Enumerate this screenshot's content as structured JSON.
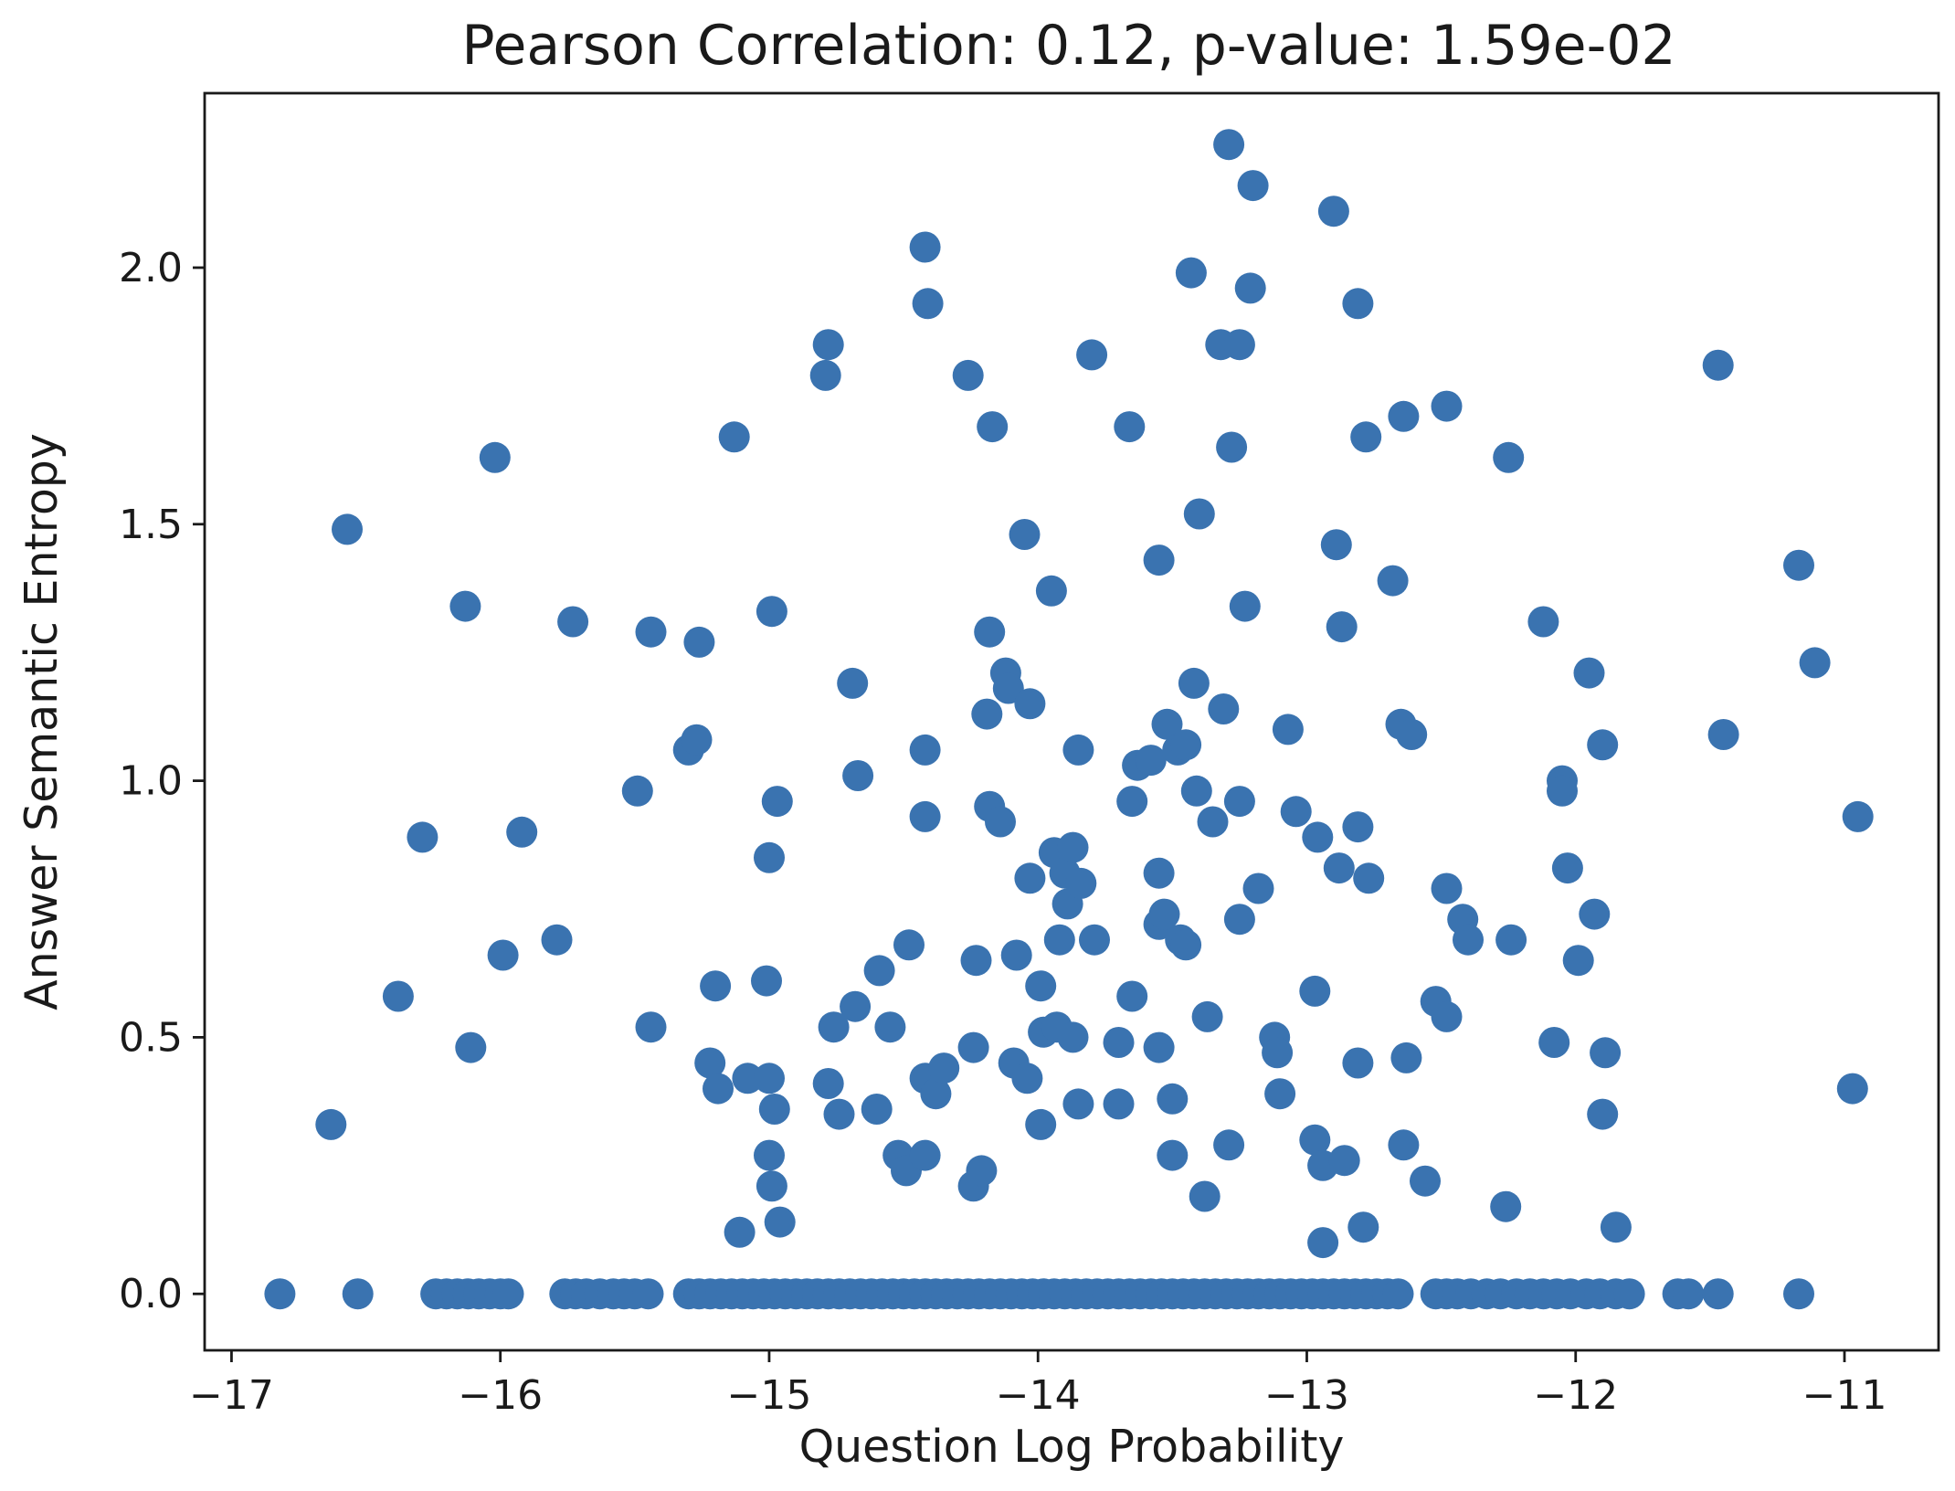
{
  "chart_data": {
    "type": "scatter",
    "title": "Pearson Correlation: 0.12, p-value: 1.59e-02",
    "xlabel": "Question Log Probability",
    "ylabel": "Answer Semantic Entropy",
    "xlim": [
      -17.1,
      -10.65
    ],
    "ylim": [
      -0.11,
      2.34
    ],
    "xticks": [
      -17,
      -16,
      -15,
      -14,
      -13,
      -12,
      -11
    ],
    "xtick_labels": [
      "−17",
      "−16",
      "−15",
      "−14",
      "−13",
      "−12",
      "−11"
    ],
    "yticks": [
      0.0,
      0.5,
      1.0,
      1.5,
      2.0
    ],
    "ytick_labels": [
      "0.0",
      "0.5",
      "1.0",
      "1.5",
      "2.0"
    ],
    "grid": false,
    "marker_color": "#3a73b0",
    "points": [
      [
        -16.82,
        0.0
      ],
      [
        -16.53,
        0.0
      ],
      [
        -16.24,
        0.0
      ],
      [
        -16.2,
        0.0
      ],
      [
        -16.16,
        0.0
      ],
      [
        -16.12,
        0.0
      ],
      [
        -16.08,
        0.0
      ],
      [
        -16.04,
        0.0
      ],
      [
        -16.0,
        0.0
      ],
      [
        -15.97,
        0.0
      ],
      [
        -15.76,
        0.0
      ],
      [
        -15.72,
        0.0
      ],
      [
        -15.68,
        0.0
      ],
      [
        -15.63,
        0.0
      ],
      [
        -15.58,
        0.0
      ],
      [
        -15.54,
        0.0
      ],
      [
        -15.5,
        0.0
      ],
      [
        -15.45,
        0.0
      ],
      [
        -15.3,
        0.0
      ],
      [
        -15.26,
        0.0
      ],
      [
        -15.22,
        0.0
      ],
      [
        -15.18,
        0.0
      ],
      [
        -15.14,
        0.0
      ],
      [
        -15.1,
        0.0
      ],
      [
        -15.06,
        0.0
      ],
      [
        -15.02,
        0.0
      ],
      [
        -14.98,
        0.0
      ],
      [
        -14.94,
        0.0
      ],
      [
        -14.9,
        0.0
      ],
      [
        -14.86,
        0.0
      ],
      [
        -14.82,
        0.0
      ],
      [
        -14.78,
        0.0
      ],
      [
        -14.74,
        0.0
      ],
      [
        -14.7,
        0.0
      ],
      [
        -14.66,
        0.0
      ],
      [
        -14.62,
        0.0
      ],
      [
        -14.58,
        0.0
      ],
      [
        -14.54,
        0.0
      ],
      [
        -14.5,
        0.0
      ],
      [
        -14.46,
        0.0
      ],
      [
        -14.42,
        0.0
      ],
      [
        -14.38,
        0.0
      ],
      [
        -14.34,
        0.0
      ],
      [
        -14.3,
        0.0
      ],
      [
        -14.26,
        0.0
      ],
      [
        -14.22,
        0.0
      ],
      [
        -14.18,
        0.0
      ],
      [
        -14.14,
        0.0
      ],
      [
        -14.1,
        0.0
      ],
      [
        -14.06,
        0.0
      ],
      [
        -14.02,
        0.0
      ],
      [
        -13.98,
        0.0
      ],
      [
        -13.94,
        0.0
      ],
      [
        -13.9,
        0.0
      ],
      [
        -13.86,
        0.0
      ],
      [
        -13.82,
        0.0
      ],
      [
        -13.78,
        0.0
      ],
      [
        -13.74,
        0.0
      ],
      [
        -13.7,
        0.0
      ],
      [
        -13.66,
        0.0
      ],
      [
        -13.62,
        0.0
      ],
      [
        -13.58,
        0.0
      ],
      [
        -13.54,
        0.0
      ],
      [
        -13.5,
        0.0
      ],
      [
        -13.46,
        0.0
      ],
      [
        -13.42,
        0.0
      ],
      [
        -13.38,
        0.0
      ],
      [
        -13.34,
        0.0
      ],
      [
        -13.3,
        0.0
      ],
      [
        -13.26,
        0.0
      ],
      [
        -13.22,
        0.0
      ],
      [
        -13.18,
        0.0
      ],
      [
        -13.14,
        0.0
      ],
      [
        -13.1,
        0.0
      ],
      [
        -13.06,
        0.0
      ],
      [
        -13.02,
        0.0
      ],
      [
        -12.98,
        0.0
      ],
      [
        -12.94,
        0.0
      ],
      [
        -12.9,
        0.0
      ],
      [
        -12.86,
        0.0
      ],
      [
        -12.82,
        0.0
      ],
      [
        -12.78,
        0.0
      ],
      [
        -12.74,
        0.0
      ],
      [
        -12.7,
        0.0
      ],
      [
        -12.66,
        0.0
      ],
      [
        -12.52,
        0.0
      ],
      [
        -12.48,
        0.0
      ],
      [
        -12.44,
        0.0
      ],
      [
        -12.39,
        0.0
      ],
      [
        -12.33,
        0.0
      ],
      [
        -12.28,
        0.0
      ],
      [
        -12.22,
        0.0
      ],
      [
        -12.17,
        0.0
      ],
      [
        -12.12,
        0.0
      ],
      [
        -12.07,
        0.0
      ],
      [
        -12.02,
        0.0
      ],
      [
        -11.96,
        0.0
      ],
      [
        -11.91,
        0.0
      ],
      [
        -11.85,
        0.0
      ],
      [
        -11.8,
        0.0
      ],
      [
        -11.62,
        0.0
      ],
      [
        -11.58,
        0.0
      ],
      [
        -11.47,
        0.0
      ],
      [
        -11.17,
        0.0
      ],
      [
        -16.63,
        0.33
      ],
      [
        -16.57,
        1.49
      ],
      [
        -16.38,
        0.58
      ],
      [
        -16.29,
        0.89
      ],
      [
        -16.13,
        1.34
      ],
      [
        -16.11,
        0.48
      ],
      [
        -16.02,
        1.63
      ],
      [
        -15.99,
        0.66
      ],
      [
        -15.92,
        0.9
      ],
      [
        -15.79,
        0.69
      ],
      [
        -15.73,
        1.31
      ],
      [
        -15.49,
        0.98
      ],
      [
        -15.44,
        1.29
      ],
      [
        -15.44,
        0.52
      ],
      [
        -15.3,
        1.06
      ],
      [
        -15.27,
        1.08
      ],
      [
        -15.26,
        1.27
      ],
      [
        -15.22,
        0.45
      ],
      [
        -15.2,
        0.6
      ],
      [
        -15.19,
        0.4
      ],
      [
        -15.13,
        1.67
      ],
      [
        -15.11,
        0.12
      ],
      [
        -15.08,
        0.42
      ],
      [
        -15.01,
        0.61
      ],
      [
        -15.0,
        0.42
      ],
      [
        -15.0,
        0.27
      ],
      [
        -15.0,
        0.85
      ],
      [
        -14.99,
        0.21
      ],
      [
        -14.99,
        1.33
      ],
      [
        -14.98,
        0.36
      ],
      [
        -14.97,
        0.96
      ],
      [
        -14.96,
        0.14
      ],
      [
        -14.79,
        1.79
      ],
      [
        -14.78,
        0.41
      ],
      [
        -14.78,
        1.85
      ],
      [
        -14.76,
        0.52
      ],
      [
        -14.74,
        0.35
      ],
      [
        -14.69,
        1.19
      ],
      [
        -14.68,
        0.56
      ],
      [
        -14.67,
        1.01
      ],
      [
        -14.6,
        0.36
      ],
      [
        -14.59,
        0.63
      ],
      [
        -14.55,
        0.52
      ],
      [
        -14.52,
        0.27
      ],
      [
        -14.49,
        0.24
      ],
      [
        -14.48,
        0.68
      ],
      [
        -14.42,
        2.04
      ],
      [
        -14.42,
        0.42
      ],
      [
        -14.42,
        0.27
      ],
      [
        -14.42,
        0.93
      ],
      [
        -14.42,
        1.06
      ],
      [
        -14.41,
        1.93
      ],
      [
        -14.38,
        0.39
      ],
      [
        -14.35,
        0.44
      ],
      [
        -14.26,
        1.79
      ],
      [
        -14.24,
        0.48
      ],
      [
        -14.24,
        0.21
      ],
      [
        -14.23,
        0.65
      ],
      [
        -14.21,
        0.24
      ],
      [
        -14.19,
        1.13
      ],
      [
        -14.18,
        1.29
      ],
      [
        -14.18,
        0.95
      ],
      [
        -14.17,
        1.69
      ],
      [
        -14.14,
        0.92
      ],
      [
        -14.12,
        1.21
      ],
      [
        -14.11,
        1.18
      ],
      [
        -14.09,
        0.45
      ],
      [
        -14.08,
        0.66
      ],
      [
        -14.05,
        1.48
      ],
      [
        -14.04,
        0.42
      ],
      [
        -14.03,
        0.81
      ],
      [
        -14.03,
        1.15
      ],
      [
        -13.99,
        0.33
      ],
      [
        -13.99,
        0.6
      ],
      [
        -13.98,
        0.51
      ],
      [
        -13.95,
        1.37
      ],
      [
        -13.94,
        0.86
      ],
      [
        -13.93,
        0.52
      ],
      [
        -13.92,
        0.69
      ],
      [
        -13.9,
        0.82
      ],
      [
        -13.89,
        0.76
      ],
      [
        -13.87,
        0.87
      ],
      [
        -13.87,
        0.5
      ],
      [
        -13.85,
        0.37
      ],
      [
        -13.85,
        1.06
      ],
      [
        -13.84,
        0.8
      ],
      [
        -13.8,
        1.83
      ],
      [
        -13.79,
        0.69
      ],
      [
        -13.7,
        0.49
      ],
      [
        -13.7,
        0.37
      ],
      [
        -13.65,
        0.58
      ],
      [
        -13.66,
        1.69
      ],
      [
        -13.65,
        0.96
      ],
      [
        -13.63,
        1.03
      ],
      [
        -13.58,
        1.04
      ],
      [
        -13.55,
        0.72
      ],
      [
        -13.55,
        1.43
      ],
      [
        -13.55,
        0.82
      ],
      [
        -13.55,
        0.48
      ],
      [
        -13.53,
        0.74
      ],
      [
        -13.52,
        1.11
      ],
      [
        -13.5,
        0.38
      ],
      [
        -13.5,
        0.27
      ],
      [
        -13.48,
        1.06
      ],
      [
        -13.47,
        0.69
      ],
      [
        -13.45,
        0.68
      ],
      [
        -13.45,
        1.07
      ],
      [
        -13.43,
        1.99
      ],
      [
        -13.42,
        1.19
      ],
      [
        -13.41,
        0.98
      ],
      [
        -13.4,
        1.52
      ],
      [
        -13.38,
        0.19
      ],
      [
        -13.37,
        0.54
      ],
      [
        -13.35,
        0.92
      ],
      [
        -13.32,
        1.85
      ],
      [
        -13.31,
        1.14
      ],
      [
        -13.29,
        0.29
      ],
      [
        -13.29,
        2.24
      ],
      [
        -13.28,
        1.65
      ],
      [
        -13.25,
        1.85
      ],
      [
        -13.25,
        0.96
      ],
      [
        -13.25,
        0.73
      ],
      [
        -13.23,
        1.34
      ],
      [
        -13.21,
        1.96
      ],
      [
        -13.2,
        2.16
      ],
      [
        -13.18,
        0.79
      ],
      [
        -13.12,
        0.5
      ],
      [
        -13.11,
        0.47
      ],
      [
        -13.1,
        0.39
      ],
      [
        -13.07,
        1.1
      ],
      [
        -13.04,
        0.94
      ],
      [
        -12.97,
        0.3
      ],
      [
        -12.97,
        0.59
      ],
      [
        -12.96,
        0.89
      ],
      [
        -12.94,
        0.1
      ],
      [
        -12.94,
        0.25
      ],
      [
        -12.9,
        2.11
      ],
      [
        -12.89,
        1.46
      ],
      [
        -12.88,
        0.83
      ],
      [
        -12.87,
        1.3
      ],
      [
        -12.86,
        0.26
      ],
      [
        -12.81,
        1.93
      ],
      [
        -12.81,
        0.91
      ],
      [
        -12.81,
        0.45
      ],
      [
        -12.79,
        0.13
      ],
      [
        -12.78,
        1.67
      ],
      [
        -12.77,
        0.81
      ],
      [
        -12.68,
        1.39
      ],
      [
        -12.65,
        1.11
      ],
      [
        -12.64,
        1.71
      ],
      [
        -12.64,
        0.29
      ],
      [
        -12.63,
        0.46
      ],
      [
        -12.61,
        1.09
      ],
      [
        -12.56,
        0.22
      ],
      [
        -12.52,
        0.57
      ],
      [
        -12.48,
        1.73
      ],
      [
        -12.48,
        0.79
      ],
      [
        -12.48,
        0.54
      ],
      [
        -12.42,
        0.73
      ],
      [
        -12.4,
        0.69
      ],
      [
        -12.26,
        0.17
      ],
      [
        -12.25,
        1.63
      ],
      [
        -12.24,
        0.69
      ],
      [
        -12.12,
        1.31
      ],
      [
        -12.08,
        0.49
      ],
      [
        -12.05,
        1.0
      ],
      [
        -12.05,
        0.98
      ],
      [
        -12.03,
        0.83
      ],
      [
        -11.99,
        0.65
      ],
      [
        -11.95,
        1.21
      ],
      [
        -11.93,
        0.74
      ],
      [
        -11.9,
        1.07
      ],
      [
        -11.9,
        0.35
      ],
      [
        -11.89,
        0.47
      ],
      [
        -11.85,
        0.13
      ],
      [
        -11.47,
        1.81
      ],
      [
        -11.45,
        1.09
      ],
      [
        -11.17,
        1.42
      ],
      [
        -11.11,
        1.23
      ],
      [
        -10.97,
        0.4
      ],
      [
        -10.95,
        0.93
      ]
    ]
  }
}
